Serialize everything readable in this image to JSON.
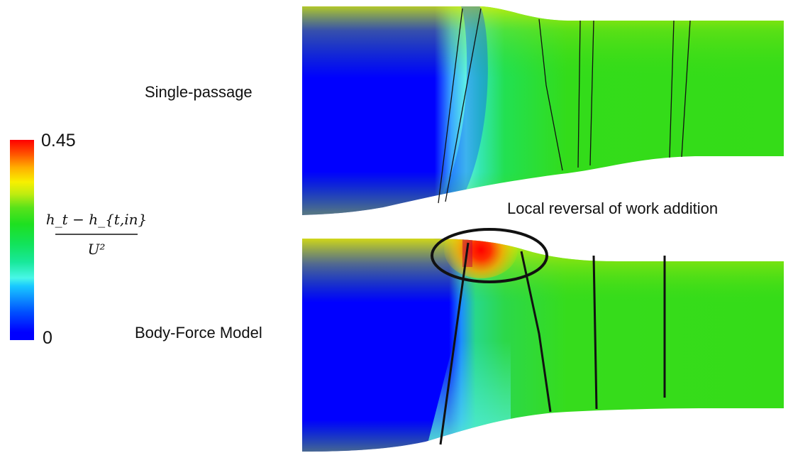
{
  "labels": {
    "top_panel": "Single-passage",
    "bottom_panel": "Body-Force Model",
    "annotation": "Local reversal of work addition"
  },
  "colorbar": {
    "max_label": "0.45",
    "min_label": "0",
    "variable_numerator": "h_t − h_{t,in}",
    "variable_denominator": "U²",
    "colormap": [
      "#0000ff",
      "#00c8ff",
      "#00e676",
      "#33dd11",
      "#ffee00",
      "#ff8000",
      "#ff0000"
    ]
  }
}
